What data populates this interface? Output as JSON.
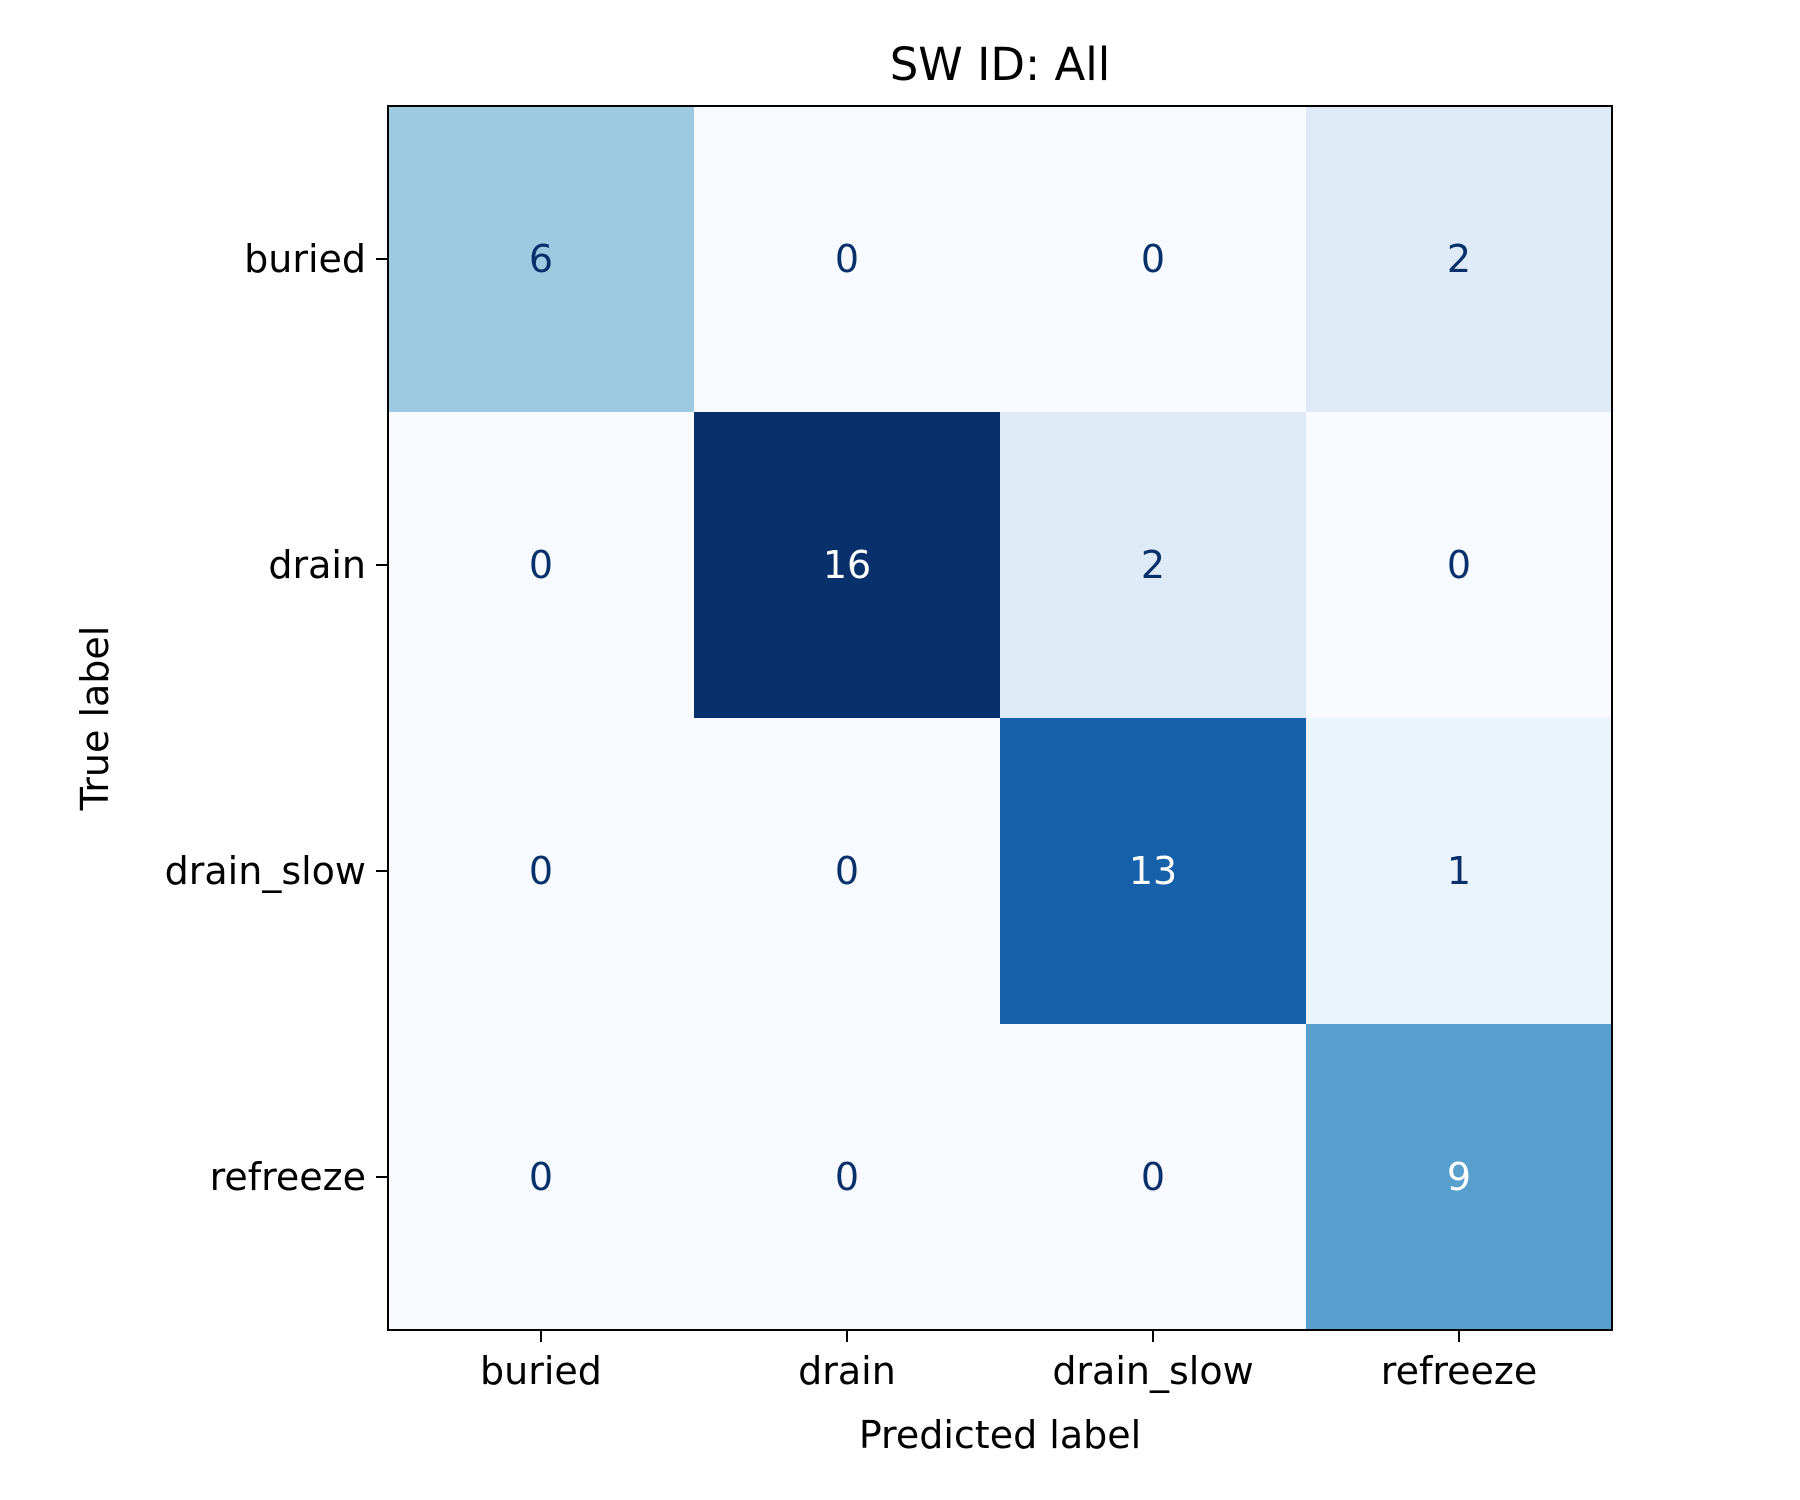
{
  "chart_data": {
    "type": "heatmap",
    "title": "SW ID: All",
    "xlabel": "Predicted label",
    "ylabel": "True label",
    "x_categories": [
      "buried",
      "drain",
      "drain_slow",
      "refreeze"
    ],
    "y_categories": [
      "buried",
      "drain",
      "drain_slow",
      "refreeze"
    ],
    "values": [
      [
        6,
        0,
        0,
        2
      ],
      [
        0,
        16,
        2,
        0
      ],
      [
        0,
        0,
        13,
        1
      ],
      [
        0,
        0,
        0,
        9
      ]
    ],
    "colormap": "Blues",
    "value_range": [
      0,
      16
    ],
    "colorbar": false,
    "colors": {
      "text_dark": "#08306b",
      "text_light": "#ffffff",
      "frame": "#000000"
    }
  }
}
